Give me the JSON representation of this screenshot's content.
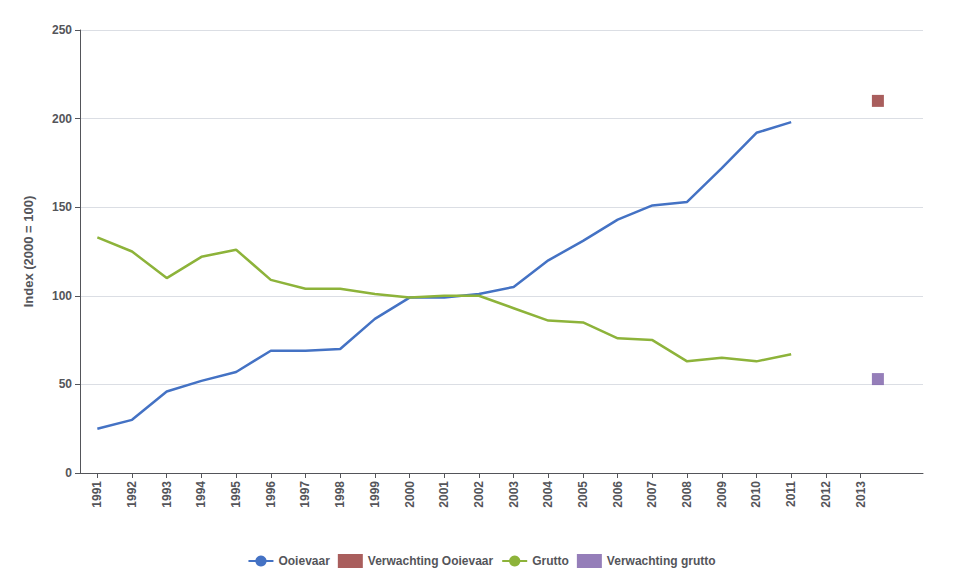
{
  "chart_data": {
    "type": "line",
    "ylabel": "Index (2000 = 100)",
    "xlim": [
      1990.5,
      2014.8
    ],
    "xticks": [
      1991,
      1992,
      1993,
      1994,
      1995,
      1996,
      1997,
      1998,
      1999,
      2000,
      2001,
      2002,
      2003,
      2004,
      2005,
      2006,
      2007,
      2008,
      2009,
      2010,
      2011,
      2012,
      2013
    ],
    "ylim": [
      0,
      250
    ],
    "yticks": [
      0,
      50,
      100,
      150,
      200,
      250
    ],
    "grid": true,
    "legend": "bottom",
    "series": [
      {
        "name": "Ooievaar",
        "type": "line",
        "color": "#4472C4",
        "x": [
          1991,
          1992,
          1993,
          1994,
          1995,
          1996,
          1997,
          1998,
          1999,
          2000,
          2001,
          2002,
          2003,
          2004,
          2005,
          2006,
          2007,
          2008,
          2009,
          2010,
          2011
        ],
        "values": [
          25,
          30,
          46,
          52,
          57,
          69,
          69,
          70,
          87,
          99,
          99,
          101,
          105,
          120,
          131,
          143,
          151,
          153,
          172,
          192,
          198
        ]
      },
      {
        "name": "Verwachting Ooievaar",
        "type": "scatter",
        "marker": "square",
        "color": "#943634",
        "x": [
          2013.5
        ],
        "values": [
          210
        ]
      },
      {
        "name": "Grutto",
        "type": "line",
        "color": "#8DB33A",
        "x": [
          1991,
          1992,
          1993,
          1994,
          1995,
          1996,
          1997,
          1998,
          1999,
          2000,
          2001,
          2002,
          2003,
          2004,
          2005,
          2006,
          2007,
          2008,
          2009,
          2010,
          2011
        ],
        "values": [
          133,
          125,
          110,
          122,
          126,
          109,
          104,
          104,
          101,
          99,
          100,
          100,
          93,
          86,
          85,
          76,
          75,
          63,
          65,
          63,
          67
        ]
      },
      {
        "name": "Verwachting grutto",
        "type": "scatter",
        "marker": "square",
        "color": "#7B5EA7",
        "x": [
          2013.5
        ],
        "values": [
          53
        ]
      }
    ]
  }
}
